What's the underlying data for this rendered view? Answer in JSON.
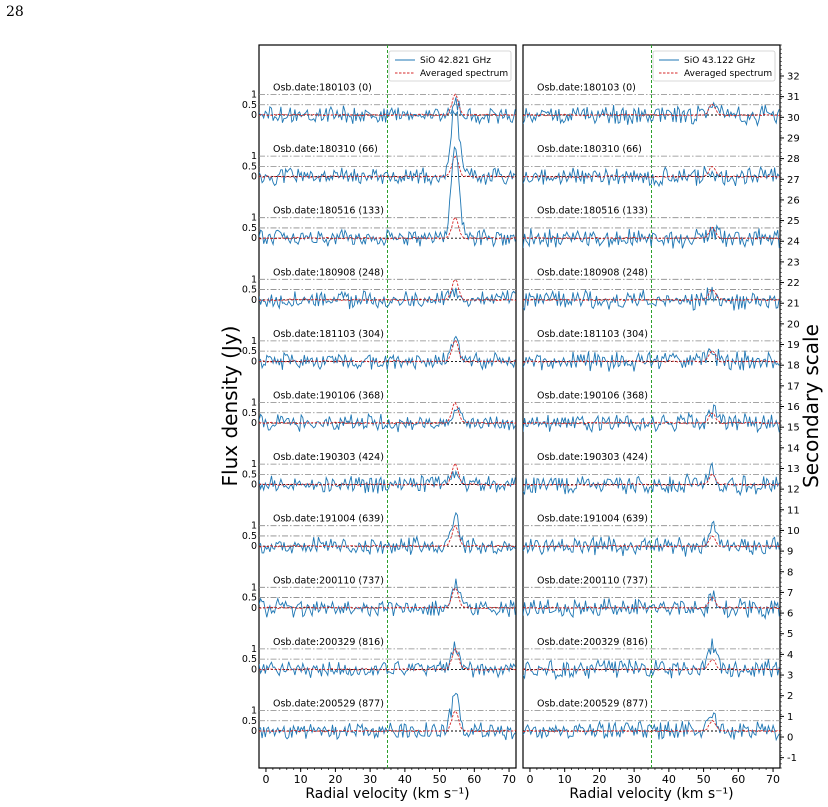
{
  "page_number": "28",
  "colors": {
    "observed": "#1f77b4",
    "averaged": "#d62728",
    "ref_line": "#888888",
    "zero_line": "#000000",
    "vline": "#2ca02c"
  },
  "chart_data": [
    {
      "type": "line",
      "panel": "left",
      "xlabel": "Radial velocity (km s⁻¹)",
      "ylabel": "Flux density (Jy)",
      "xlim": [
        -2,
        72
      ],
      "xticks": [
        0,
        10,
        20,
        30,
        40,
        50,
        60,
        70
      ],
      "legend": {
        "placement": "top-right",
        "entries": [
          "SiO 42.821 GHz",
          "Averaged spectrum"
        ]
      },
      "vline_x": 35,
      "yticks_labels": [
        "1",
        "0.5",
        "0"
      ],
      "peak_velocity": 54.5,
      "averaged_peak": 1.0,
      "observations": [
        {
          "label": "Osb.date:180103 (0)",
          "peak": 0.6
        },
        {
          "label": "Osb.date:180310 (66)",
          "peak": 3.5
        },
        {
          "label": "Osb.date:180516 (133)",
          "peak": 4.5
        },
        {
          "label": "Osb.date:180908 (248)",
          "peak": 0.4
        },
        {
          "label": "Osb.date:181103 (304)",
          "peak": 1.0
        },
        {
          "label": "Osb.date:190106 (368)",
          "peak": 0.8
        },
        {
          "label": "Osb.date:190303 (424)",
          "peak": 0.8
        },
        {
          "label": "Osb.date:191004 (639)",
          "peak": 1.5
        },
        {
          "label": "Osb.date:200110 (737)",
          "peak": 1.0
        },
        {
          "label": "Osb.date:200329 (816)",
          "peak": 1.1
        },
        {
          "label": "Osb.date:200529 (877)",
          "peak": 1.8
        }
      ]
    },
    {
      "type": "line",
      "panel": "right",
      "xlabel": "Radial velocity (km s⁻¹)",
      "ylabel": "Secondary scale",
      "xlim": [
        -2,
        72
      ],
      "xticks": [
        0,
        10,
        20,
        30,
        40,
        50,
        60,
        70
      ],
      "legend": {
        "placement": "top-right",
        "entries": [
          "SiO 43.122 GHz",
          "Averaged spectrum"
        ]
      },
      "vline_x": 35,
      "secondary_ylim": [
        -1.5,
        33.5
      ],
      "secondary_yticks": [
        -1,
        0,
        1,
        2,
        3,
        4,
        5,
        6,
        7,
        8,
        9,
        10,
        11,
        12,
        13,
        14,
        15,
        16,
        17,
        18,
        19,
        20,
        21,
        22,
        23,
        24,
        25,
        26,
        27,
        28,
        29,
        30,
        31,
        32
      ],
      "peak_velocity": 52.5,
      "averaged_peak": 0.5,
      "observations": [
        {
          "label": "Osb.date:180103 (0)",
          "peak": 0.2
        },
        {
          "label": "Osb.date:180310 (66)",
          "peak": 0.3
        },
        {
          "label": "Osb.date:180516 (133)",
          "peak": 0.3
        },
        {
          "label": "Osb.date:180908 (248)",
          "peak": 0.3
        },
        {
          "label": "Osb.date:181103 (304)",
          "peak": 0.5
        },
        {
          "label": "Osb.date:190106 (368)",
          "peak": 0.6
        },
        {
          "label": "Osb.date:190303 (424)",
          "peak": 0.8
        },
        {
          "label": "Osb.date:191004 (639)",
          "peak": 1.1
        },
        {
          "label": "Osb.date:200110 (737)",
          "peak": 0.5
        },
        {
          "label": "Osb.date:200329 (816)",
          "peak": 1.1
        },
        {
          "label": "Osb.date:200529 (877)",
          "peak": 0.7
        }
      ]
    }
  ]
}
